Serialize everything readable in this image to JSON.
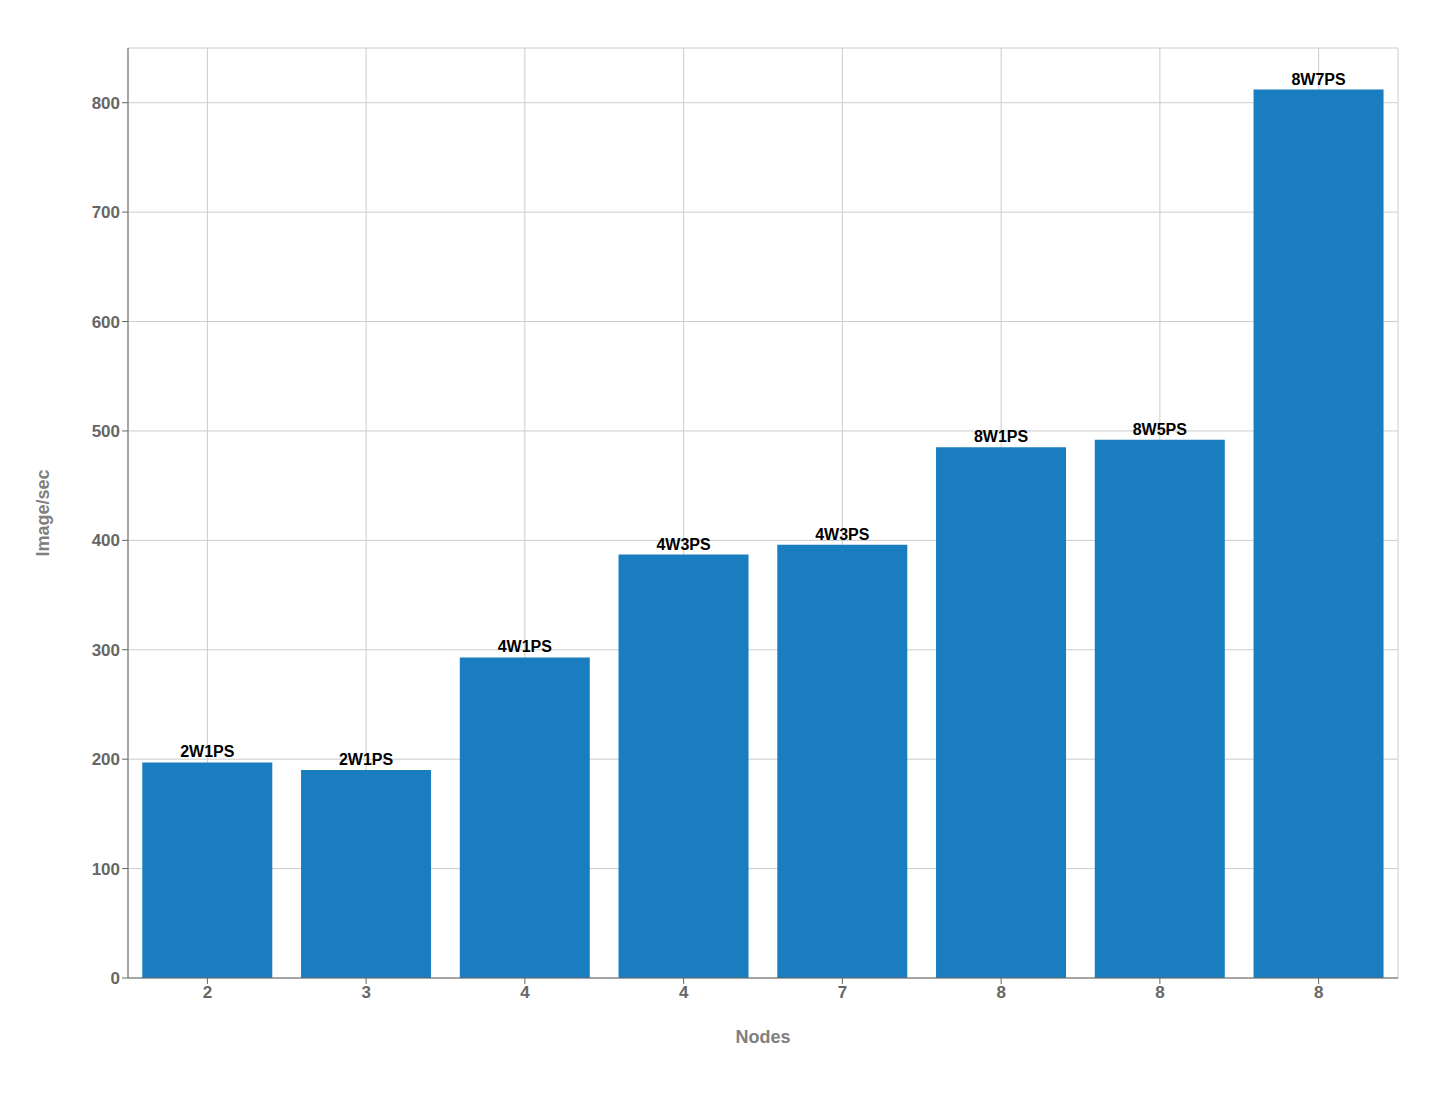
{
  "chart_data": {
    "type": "bar",
    "categories": [
      "2",
      "3",
      "4",
      "4",
      "7",
      "8",
      "8",
      "8"
    ],
    "values": [
      197,
      190,
      293,
      387,
      396,
      485,
      492,
      812
    ],
    "annotations": [
      "2W1PS",
      "2W1PS",
      "4W1PS",
      "4W3PS",
      "4W3PS",
      "8W1PS",
      "8W5PS",
      "8W7PS"
    ],
    "color": "#1a7dc0",
    "xlabel": "Nodes",
    "ylabel": "Image/sec",
    "ylim": [
      0,
      850
    ],
    "yticks": [
      0,
      100,
      200,
      300,
      400,
      500,
      600,
      700,
      800
    ],
    "grid": true
  }
}
